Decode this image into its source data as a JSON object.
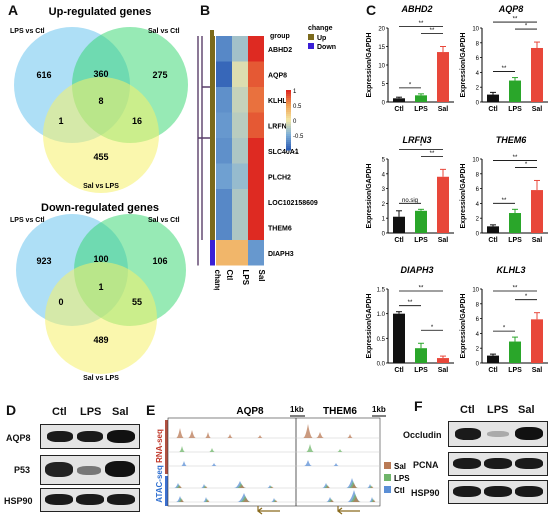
{
  "panel_A": {
    "letter": "A",
    "up": {
      "title": "Up-regulated genes",
      "set1": "LPS vs Ctl",
      "set2": "Sal vs Ctl",
      "set3": "Sal vs LPS",
      "n_only1": "616",
      "n_12": "360",
      "n_only2": "275",
      "n_all": "8",
      "n_13": "1",
      "n_23": "16",
      "n_only3": "455"
    },
    "down": {
      "title": "Down-regulated genes",
      "set1": "LPS vs Ctl",
      "set2": "Sal vs Ctl",
      "set3": "Sal vs LPS",
      "n_only1": "923",
      "n_12": "100",
      "n_only2": "106",
      "n_all": "1",
      "n_13": "0",
      "n_23": "55",
      "n_only3": "489"
    }
  },
  "panel_B": {
    "letter": "B",
    "genes": [
      "ABHD2",
      "AQP8",
      "KLHL3",
      "LRFN3",
      "SLC40A1",
      "PLCH2",
      "LOC102158609",
      "THEM6",
      "DIAPH3"
    ],
    "columns": [
      "Ctl",
      "LPS",
      "Sal"
    ],
    "group_label": "group",
    "change_col_label": "change",
    "legend_title": "change",
    "legend_items": [
      {
        "label": "Up",
        "color": "#7b6a1c"
      },
      {
        "label": "Down",
        "color": "#3a1fd6"
      }
    ],
    "scale_ticks": [
      "1",
      "0.5",
      "0",
      "-0.5",
      "-1"
    ],
    "values": [
      [
        -0.75,
        -0.35,
        1.0
      ],
      [
        -0.95,
        -0.1,
        0.8
      ],
      [
        -0.7,
        -0.2,
        0.7
      ],
      [
        -0.65,
        -0.25,
        0.8
      ],
      [
        -0.7,
        -0.3,
        1.0
      ],
      [
        -0.6,
        -0.4,
        1.0
      ],
      [
        -0.75,
        -0.3,
        1.0
      ],
      [
        -0.75,
        -0.3,
        1.0
      ],
      [
        0.35,
        0.35,
        -0.65
      ]
    ],
    "change": [
      "Up",
      "Up",
      "Up",
      "Up",
      "Up",
      "Up",
      "Up",
      "Up",
      "Down"
    ]
  },
  "panel_C": {
    "letter": "C",
    "ylabel": "Expression/GAPDH",
    "categories": [
      "Ctl",
      "LPS",
      "Sal"
    ],
    "colors": [
      "#111111",
      "#2aa62a",
      "#e8473a"
    ],
    "charts": [
      {
        "gene": "ABHD2",
        "ylim": [
          0,
          20
        ],
        "ticks": [
          "0",
          "5",
          "10",
          "15",
          "20"
        ],
        "values": [
          1,
          1.8,
          13.5
        ],
        "errs": [
          0.3,
          0.4,
          1.5
        ],
        "sig": [
          {
            "a": 0,
            "b": 1,
            "t": "*",
            "lvl": 0
          },
          {
            "a": 1,
            "b": 2,
            "t": "**",
            "lvl": 1
          },
          {
            "a": 0,
            "b": 2,
            "t": "**",
            "lvl": 2
          }
        ]
      },
      {
        "gene": "AQP8",
        "ylim": [
          0,
          10
        ],
        "ticks": [
          "0",
          "2",
          "4",
          "6",
          "8",
          "10"
        ],
        "values": [
          1,
          2.9,
          7.3
        ],
        "errs": [
          0.3,
          0.4,
          0.8
        ],
        "sig": [
          {
            "a": 0,
            "b": 1,
            "t": "**",
            "lvl": 0
          },
          {
            "a": 1,
            "b": 2,
            "t": "*",
            "lvl": 1
          },
          {
            "a": 0,
            "b": 2,
            "t": "**",
            "lvl": 2
          }
        ]
      },
      {
        "gene": "LRFN3",
        "ylim": [
          0,
          5
        ],
        "ticks": [
          "0",
          "1",
          "2",
          "3",
          "4",
          "5"
        ],
        "values": [
          1.1,
          1.5,
          3.8
        ],
        "errs": [
          0.4,
          0.1,
          0.5
        ],
        "sig": [
          {
            "a": 0,
            "b": 1,
            "t": "no.sig",
            "lvl": 0
          },
          {
            "a": 1,
            "b": 2,
            "t": "**",
            "lvl": 1
          },
          {
            "a": 0,
            "b": 2,
            "t": "*",
            "lvl": 2
          }
        ]
      },
      {
        "gene": "THEM6",
        "ylim": [
          0,
          10
        ],
        "ticks": [
          "0",
          "2",
          "4",
          "6",
          "8",
          "10"
        ],
        "values": [
          0.9,
          2.7,
          5.8
        ],
        "errs": [
          0.2,
          0.5,
          1.3
        ],
        "sig": [
          {
            "a": 0,
            "b": 1,
            "t": "**",
            "lvl": 0
          },
          {
            "a": 1,
            "b": 2,
            "t": "*",
            "lvl": 1
          },
          {
            "a": 0,
            "b": 2,
            "t": "**",
            "lvl": 2
          }
        ]
      },
      {
        "gene": "DIAPH3",
        "ylim": [
          0,
          1.5
        ],
        "ticks": [
          "0.0",
          "0.5",
          "1.0",
          "1.5"
        ],
        "values": [
          1.0,
          0.3,
          0.1
        ],
        "errs": [
          0.04,
          0.1,
          0.04
        ],
        "sig": [
          {
            "a": 0,
            "b": 1,
            "t": "**",
            "lvl": 0
          },
          {
            "a": 1,
            "b": 2,
            "t": "*",
            "lvl": 1
          },
          {
            "a": 0,
            "b": 2,
            "t": "**",
            "lvl": 2
          }
        ]
      },
      {
        "gene": "KLHL3",
        "ylim": [
          0,
          10
        ],
        "ticks": [
          "0",
          "2",
          "4",
          "6",
          "8",
          "10"
        ],
        "values": [
          1,
          2.9,
          5.9
        ],
        "errs": [
          0.2,
          0.6,
          0.9
        ],
        "sig": [
          {
            "a": 0,
            "b": 1,
            "t": "*",
            "lvl": 0
          },
          {
            "a": 1,
            "b": 2,
            "t": "*",
            "lvl": 1
          },
          {
            "a": 0,
            "b": 2,
            "t": "**",
            "lvl": 2
          }
        ]
      }
    ]
  },
  "panel_D": {
    "letter": "D",
    "lanes": [
      "Ctl",
      "LPS",
      "Sal"
    ],
    "rows": [
      "AQP8",
      "P53",
      "HSP90"
    ]
  },
  "panel_E": {
    "letter": "E",
    "gene1": "AQP8",
    "gene2": "THEM6",
    "scale1": "1kb",
    "scale2": "1kb",
    "rna_label": "RNA-seq",
    "atac_label": "ATAC-seq",
    "legend": [
      {
        "label": "Sal",
        "color": "#b97a55"
      },
      {
        "label": "LPS",
        "color": "#6fb56a"
      },
      {
        "label": "Ctl",
        "color": "#5b8fd6"
      }
    ]
  },
  "panel_F": {
    "letter": "F",
    "lanes": [
      "Ctl",
      "LPS",
      "Sal"
    ],
    "rows": [
      "Occludin",
      "PCNA",
      "HSP90"
    ]
  }
}
